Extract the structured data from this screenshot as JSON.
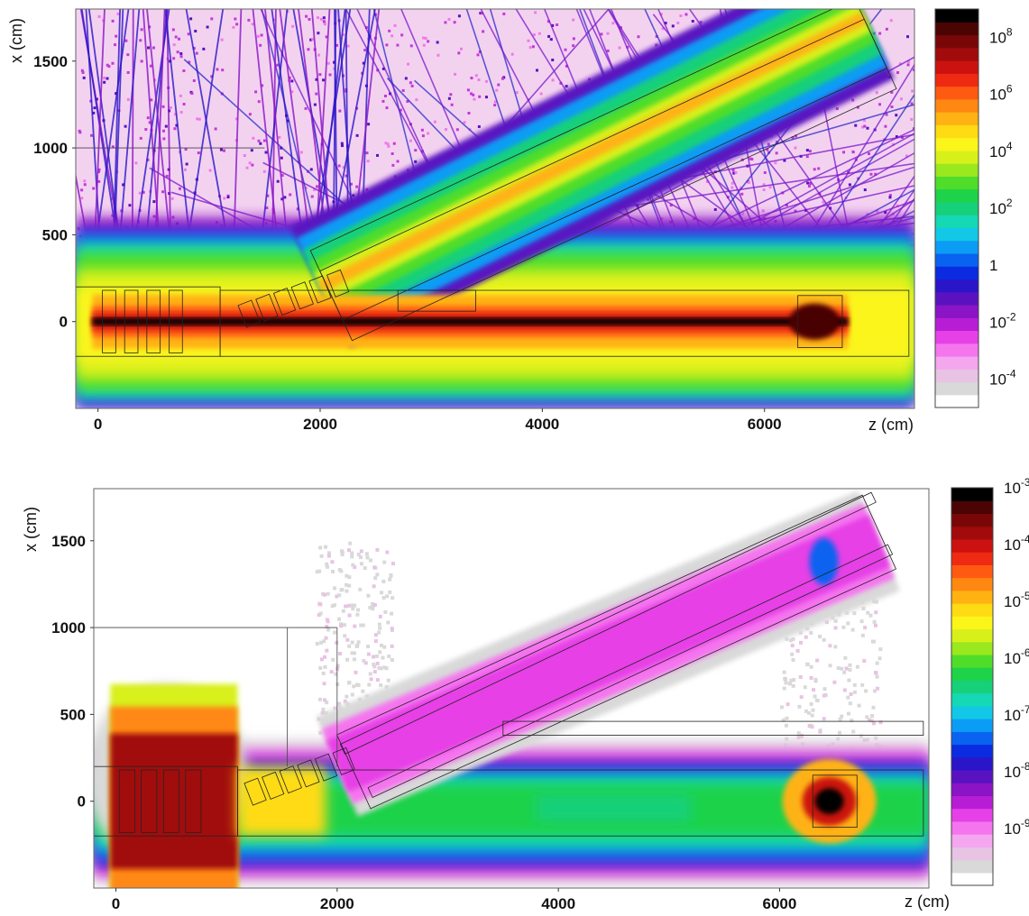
{
  "chart_data": [
    {
      "type": "heatmap",
      "title": "",
      "xlabel": "z (cm)",
      "ylabel": "x (cm)",
      "xlim": [
        -200,
        7350
      ],
      "ylim": [
        -500,
        1800
      ],
      "x_ticks": [
        {
          "value": 0,
          "label": "0"
        },
        {
          "value": 2000,
          "label": "2000"
        },
        {
          "value": 4000,
          "label": "4000"
        },
        {
          "value": 6000,
          "label": "6000"
        }
      ],
      "y_ticks": [
        {
          "value": 0,
          "label": "0"
        },
        {
          "value": 500,
          "label": "500"
        },
        {
          "value": 1000,
          "label": "1000"
        },
        {
          "value": 1500,
          "label": "1500"
        }
      ],
      "colorbar": {
        "scale": "log",
        "range": [
          1e-05,
          1000000000.0
        ],
        "ticks": [
          {
            "value": 100000000.0,
            "base": "10",
            "exp": "8"
          },
          {
            "value": 1000000.0,
            "base": "10",
            "exp": "6"
          },
          {
            "value": 10000.0,
            "base": "10",
            "exp": "4"
          },
          {
            "value": 100.0,
            "base": "10",
            "exp": "2"
          },
          {
            "value": 1,
            "base": "1",
            "exp": ""
          },
          {
            "value": 0.01,
            "base": "10",
            "exp": "-2"
          },
          {
            "value": 0.0001,
            "base": "10",
            "exp": "-4"
          }
        ],
        "colors": [
          "#ffffff",
          "#d9d9d9",
          "#e8c3e3",
          "#f4a6ee",
          "#f575ef",
          "#e641e6",
          "#b81dd6",
          "#8a14c6",
          "#5a12c0",
          "#2a15c8",
          "#0a2be0",
          "#0a62f0",
          "#0b9cf5",
          "#12c8e6",
          "#15d8b4",
          "#17d07a",
          "#1ed24a",
          "#4fdd2a",
          "#9ae81e",
          "#d8f01a",
          "#fbf51a",
          "#ffdb14",
          "#ffb212",
          "#ff8812",
          "#ff5a12",
          "#ef2a12",
          "#cc1210",
          "#a10b0b",
          "#7a0707",
          "#4a0404",
          "#000000"
        ]
      },
      "regions": {
        "beam_axis": "dense core along x = 0 from z = 0 to z = 6700",
        "beam_value_log": 7,
        "branch_line": {
          "z_start": 2000,
          "x_start": 200,
          "z_end": 6900,
          "x_end": 1750,
          "value_log": 3
        },
        "hall_band_value_log": 3,
        "halo_value_log": -3
      }
    },
    {
      "type": "heatmap",
      "title": "",
      "xlabel": "z (cm)",
      "ylabel": "x (cm)",
      "xlim": [
        -200,
        7350
      ],
      "ylim": [
        -500,
        1800
      ],
      "x_ticks": [
        {
          "value": 0,
          "label": "0"
        },
        {
          "value": 2000,
          "label": "2000"
        },
        {
          "value": 4000,
          "label": "4000"
        },
        {
          "value": 6000,
          "label": "6000"
        }
      ],
      "y_ticks": [
        {
          "value": 0,
          "label": "0"
        },
        {
          "value": 500,
          "label": "500"
        },
        {
          "value": 1000,
          "label": "1000"
        },
        {
          "value": 1500,
          "label": "1500"
        }
      ],
      "colorbar": {
        "scale": "log",
        "range": [
          1e-10,
          0.001
        ],
        "ticks": [
          {
            "value": 0.001,
            "base": "10",
            "exp": "-3"
          },
          {
            "value": 0.0001,
            "base": "10",
            "exp": "-4"
          },
          {
            "value": 1e-05,
            "base": "10",
            "exp": "-5"
          },
          {
            "value": 1e-06,
            "base": "10",
            "exp": "-6"
          },
          {
            "value": 1e-07,
            "base": "10",
            "exp": "-7"
          },
          {
            "value": 1e-08,
            "base": "10",
            "exp": "-8"
          },
          {
            "value": 1e-09,
            "base": "10",
            "exp": "-9"
          }
        ],
        "colors": [
          "#ffffff",
          "#d9d9d9",
          "#e8c3e3",
          "#f4a6ee",
          "#f575ef",
          "#e641e6",
          "#b81dd6",
          "#8a14c6",
          "#5a12c0",
          "#2a15c8",
          "#0a2be0",
          "#0a62f0",
          "#0b9cf5",
          "#12c8e6",
          "#15d8b4",
          "#17d07a",
          "#1ed24a",
          "#4fdd2a",
          "#9ae81e",
          "#d8f01a",
          "#fbf51a",
          "#ffdb14",
          "#ffb212",
          "#ff8812",
          "#ff5a12",
          "#ef2a12",
          "#cc1210",
          "#a10b0b",
          "#7a0707",
          "#4a0404",
          "#000000"
        ]
      },
      "regions": {
        "beam_axis": "hot spots at target z = 0 to 900 and at z = 6500",
        "branch_line": {
          "z_start": 2000,
          "x_start": 200,
          "z_end": 6900,
          "x_end": 1500,
          "value_log": -8.7
        },
        "hall_band_value_log": -6.3,
        "halo_value_log": -9.5
      }
    }
  ]
}
